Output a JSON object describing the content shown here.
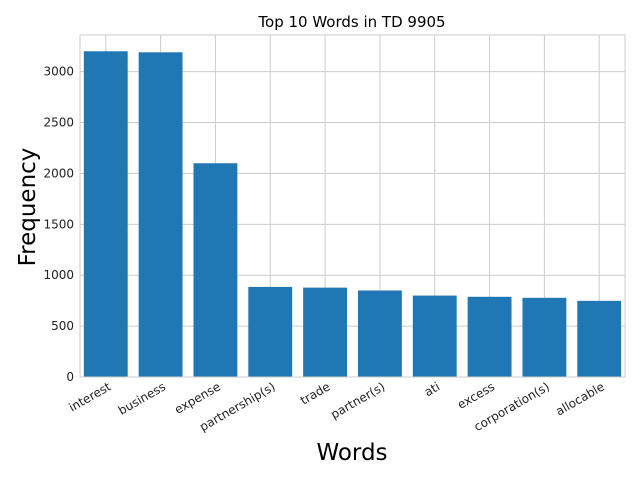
{
  "chart_data": {
    "type": "bar",
    "title": "Top 10 Words in TD 9905",
    "xlabel": "Words",
    "ylabel": "Frequency",
    "categories": [
      "interest",
      "business",
      "expense",
      "partnership(s)",
      "trade",
      "partner(s)",
      "ati",
      "excess",
      "corporation(s)",
      "allocable"
    ],
    "values": [
      3200,
      3190,
      2100,
      885,
      878,
      850,
      800,
      788,
      778,
      748
    ],
    "ylim": [
      0,
      3360
    ],
    "yticks": [
      0,
      500,
      1000,
      1500,
      2000,
      2500,
      3000
    ],
    "grid": true,
    "bar_color": "#1f77b4"
  }
}
